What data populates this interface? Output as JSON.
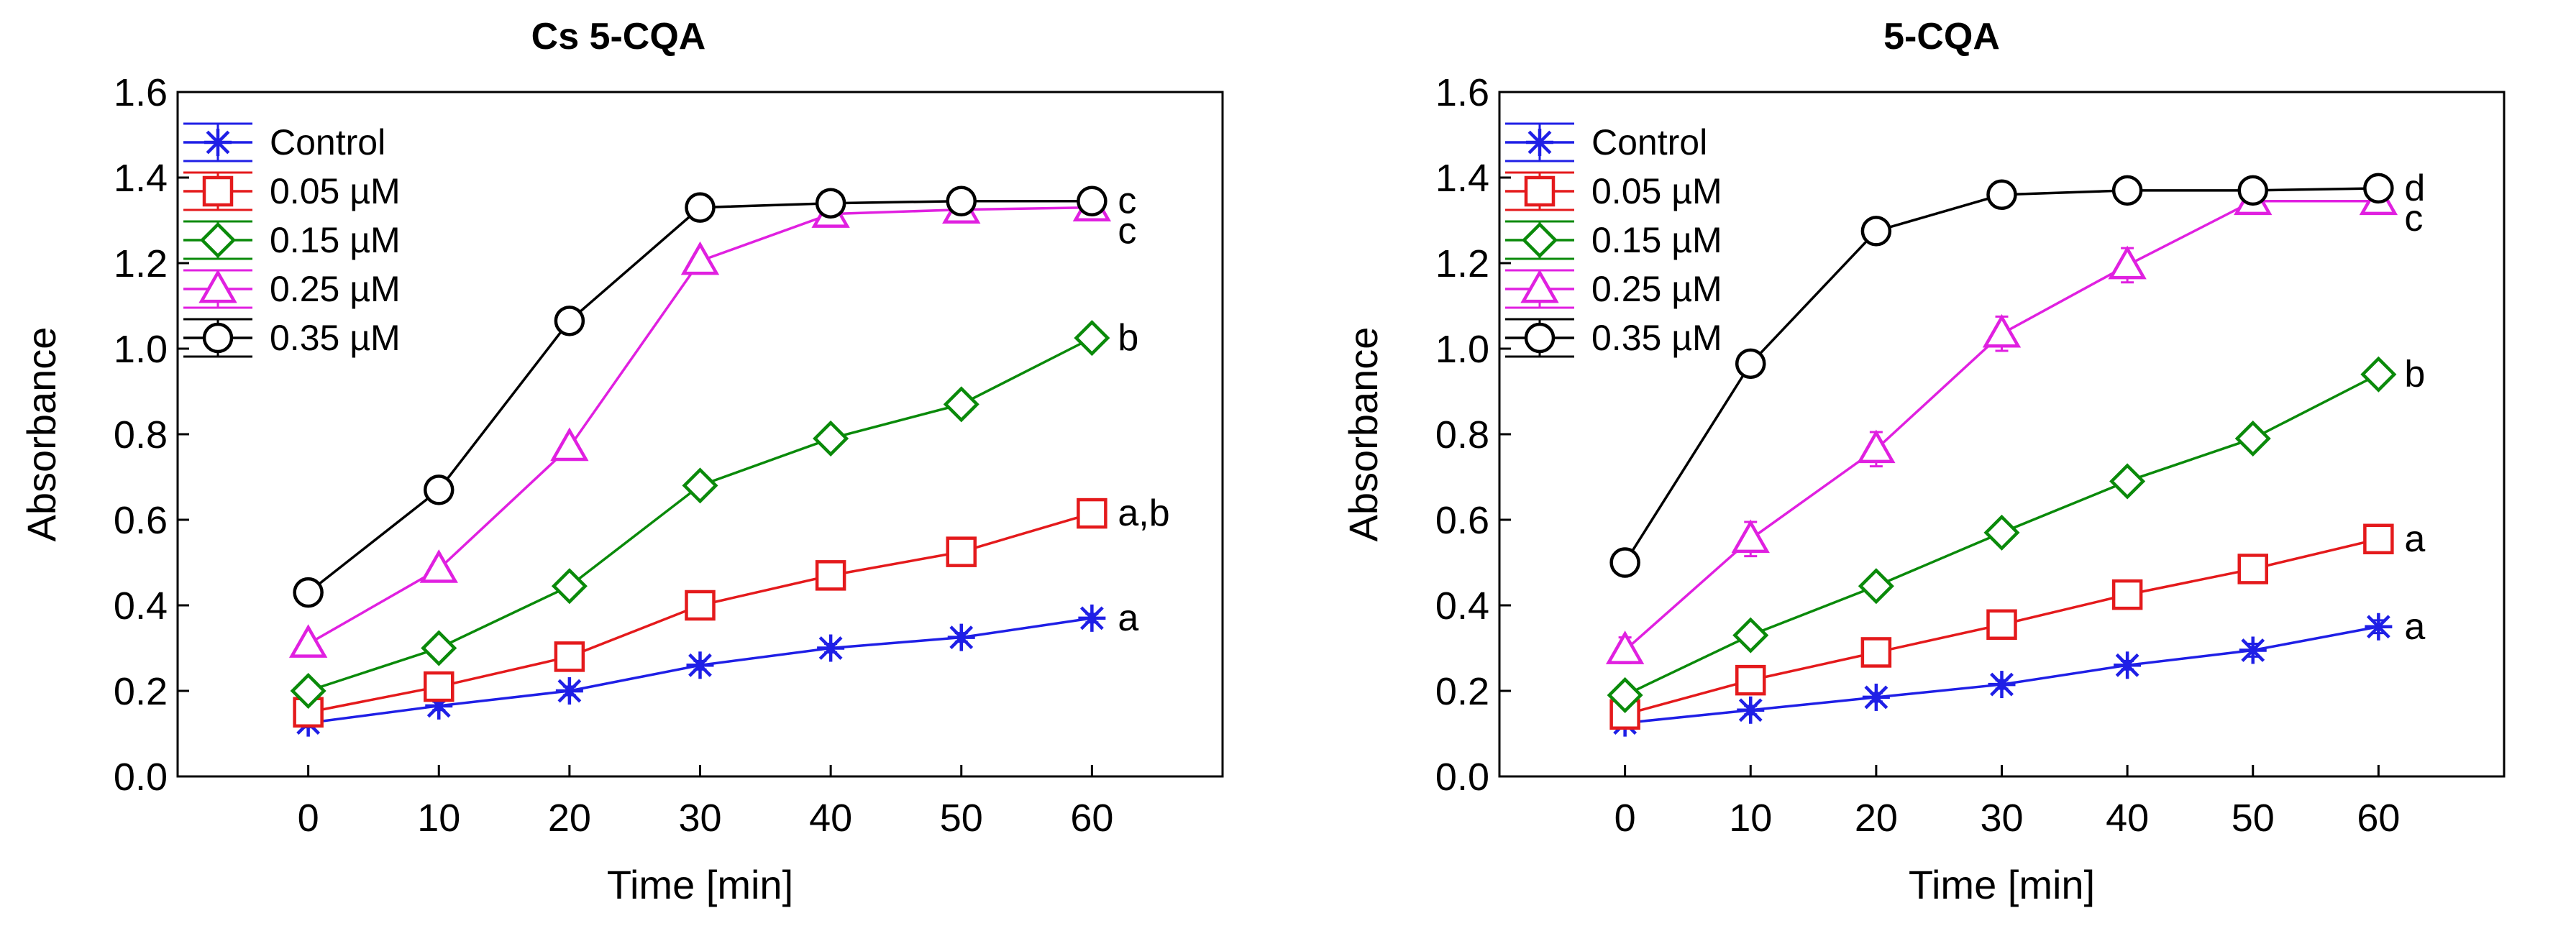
{
  "chart_data": [
    {
      "type": "line",
      "title": "Cs 5-CQA",
      "xlabel": "Time [min]",
      "ylabel": "Absorbance",
      "xlim": [
        -10,
        70
      ],
      "ylim": [
        0.0,
        1.6
      ],
      "x_ticks": [
        0,
        10,
        20,
        30,
        40,
        50,
        60
      ],
      "x_tick_labels": [
        "0",
        "10",
        "20",
        "30",
        "40",
        "50",
        "60"
      ],
      "y_ticks": [
        0.0,
        0.2,
        0.4,
        0.6,
        0.8,
        1.0,
        1.2,
        1.4,
        1.6
      ],
      "y_tick_labels": [
        "0.0",
        "0.2",
        "0.4",
        "0.6",
        "0.8",
        "1.0",
        "1.2",
        "1.4",
        "1.6"
      ],
      "legend_position": "top-left",
      "x": [
        0,
        10,
        20,
        30,
        40,
        50,
        60
      ],
      "series": [
        {
          "name": "Control",
          "color": "#1f1fe6",
          "marker": "asterisk",
          "values": [
            0.125,
            0.165,
            0.2,
            0.26,
            0.3,
            0.325,
            0.37
          ],
          "error": [
            0.01,
            0.01,
            0.01,
            0.01,
            0.01,
            0.01,
            0.01
          ],
          "label": "a"
        },
        {
          "name": "0.05 µM",
          "color": "#e41a1c",
          "marker": "square",
          "values": [
            0.15,
            0.21,
            0.28,
            0.4,
            0.47,
            0.525,
            0.615
          ],
          "error": [
            0.01,
            0.02,
            0.02,
            0.02,
            0.02,
            0.025,
            0.025
          ],
          "label": "a,b"
        },
        {
          "name": "0.15 µM",
          "color": "#0a8a0a",
          "marker": "diamond",
          "values": [
            0.2,
            0.3,
            0.445,
            0.68,
            0.79,
            0.87,
            1.025
          ],
          "error": [
            0.01,
            0.01,
            0.01,
            0.01,
            0.01,
            0.01,
            0.01
          ],
          "label": "b"
        },
        {
          "name": "0.25 µM",
          "color": "#e020e0",
          "marker": "triangle",
          "values": [
            0.31,
            0.485,
            0.77,
            1.205,
            1.315,
            1.325,
            1.33
          ],
          "error": [
            0.01,
            0.01,
            0.015,
            0.01,
            0.01,
            0.01,
            0.01
          ],
          "label": "c"
        },
        {
          "name": "0.35 µM",
          "color": "#000000",
          "marker": "circle",
          "values": [
            0.43,
            0.67,
            1.065,
            1.33,
            1.34,
            1.345,
            1.345
          ],
          "error": [
            0.02,
            0.015,
            0.025,
            0.015,
            0.01,
            0.01,
            0.01
          ],
          "label": "c"
        }
      ]
    },
    {
      "type": "line",
      "title": "5-CQA",
      "xlabel": "Time [min]",
      "ylabel": "Absorbance",
      "xlim": [
        -10,
        70
      ],
      "ylim": [
        0.0,
        1.6
      ],
      "x_ticks": [
        0,
        10,
        20,
        30,
        40,
        50,
        60
      ],
      "x_tick_labels": [
        "0",
        "10",
        "20",
        "30",
        "40",
        "50",
        "60"
      ],
      "y_ticks": [
        0.0,
        0.2,
        0.4,
        0.6,
        0.8,
        1.0,
        1.2,
        1.4,
        1.6
      ],
      "y_tick_labels": [
        "0.0",
        "0.2",
        "0.4",
        "0.6",
        "0.8",
        "1.0",
        "1.2",
        "1.4",
        "1.6"
      ],
      "legend_position": "top-left",
      "x": [
        0,
        10,
        20,
        30,
        40,
        50,
        60
      ],
      "series": [
        {
          "name": "Control",
          "color": "#1f1fe6",
          "marker": "asterisk",
          "values": [
            0.125,
            0.155,
            0.185,
            0.215,
            0.26,
            0.295,
            0.35
          ],
          "error": [
            0.01,
            0.01,
            0.01,
            0.01,
            0.01,
            0.015,
            0.015
          ],
          "label": "a"
        },
        {
          "name": "0.05 µM",
          "color": "#e41a1c",
          "marker": "square",
          "values": [
            0.145,
            0.225,
            0.29,
            0.355,
            0.425,
            0.485,
            0.555
          ],
          "error": [
            0.02,
            0.03,
            0.02,
            0.025,
            0.025,
            0.02,
            0.02
          ],
          "label": "a"
        },
        {
          "name": "0.15 µM",
          "color": "#0a8a0a",
          "marker": "diamond",
          "values": [
            0.19,
            0.33,
            0.445,
            0.57,
            0.69,
            0.79,
            0.94
          ],
          "error": [
            0.02,
            0.02,
            0.02,
            0.02,
            0.02,
            0.02,
            0.02
          ],
          "label": "b"
        },
        {
          "name": "0.25 µM",
          "color": "#e020e0",
          "marker": "triangle",
          "values": [
            0.295,
            0.555,
            0.765,
            1.035,
            1.195,
            1.345,
            1.345
          ],
          "error": [
            0.03,
            0.04,
            0.04,
            0.04,
            0.04,
            0.02,
            0.02
          ],
          "label": "c"
        },
        {
          "name": "0.35 µM",
          "color": "#000000",
          "marker": "circle",
          "values": [
            0.5,
            0.965,
            1.275,
            1.36,
            1.37,
            1.37,
            1.375
          ],
          "error": [
            0.03,
            0.03,
            0.03,
            0.03,
            0.03,
            0.03,
            0.03
          ],
          "label": "d"
        }
      ]
    }
  ]
}
